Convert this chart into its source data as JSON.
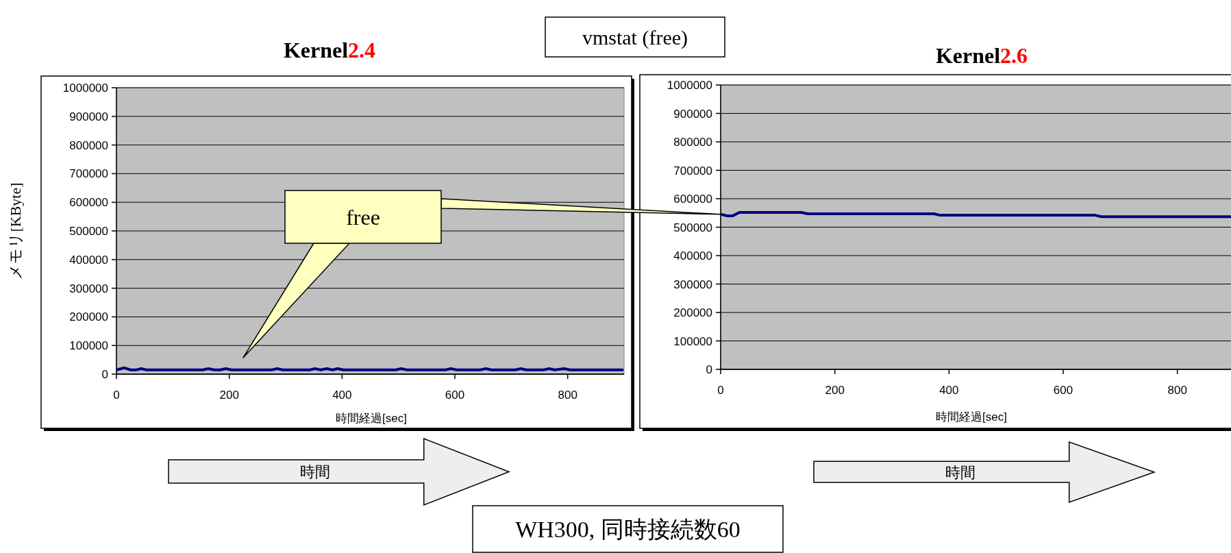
{
  "chart_data": [
    {
      "type": "line",
      "title": "Kernel2.4",
      "xlabel": "時間経過[sec]",
      "ylabel": "メモリ[KByte]",
      "x": [
        0,
        14,
        25,
        35,
        44,
        53,
        153,
        163,
        173,
        184,
        194,
        204,
        275,
        285,
        295,
        343,
        352,
        362,
        373,
        383,
        392,
        402,
        495,
        505,
        515,
        583,
        593,
        603,
        645,
        655,
        665,
        707,
        717,
        727,
        757,
        767,
        777,
        794,
        804,
        897
      ],
      "series": [
        {
          "color": "#000080",
          "values": [
            15000,
            22000,
            15000,
            15000,
            19000,
            15000,
            15000,
            19000,
            15000,
            15000,
            19000,
            15000,
            15000,
            19000,
            15000,
            15000,
            19000,
            15000,
            19000,
            15000,
            19000,
            15000,
            15000,
            19000,
            15000,
            15000,
            19000,
            15000,
            15000,
            19000,
            15000,
            15000,
            19000,
            15000,
            15000,
            19000,
            15000,
            19000,
            15000,
            15000
          ]
        }
      ],
      "xlim": [
        0,
        900
      ],
      "xticks": [
        0,
        200,
        400,
        600,
        800
      ],
      "ylim": [
        0,
        1000000
      ],
      "yticks": [
        0,
        100000,
        200000,
        300000,
        400000,
        500000,
        600000,
        700000,
        800000,
        900000,
        1000000
      ],
      "grid": "y",
      "marker": "none",
      "line_style": "solid",
      "annotations": [
        "free",
        "vmstat (free)",
        "時間"
      ]
    },
    {
      "type": "line",
      "title": "Kernel2.6",
      "xlabel": "時間経過[sec]",
      "x": [
        0,
        11,
        21,
        33,
        141,
        153,
        374,
        384,
        656,
        666,
        898
      ],
      "series": [
        {
          "color": "#000080",
          "values": [
            545000,
            540000,
            540000,
            552000,
            552000,
            547000,
            547000,
            542000,
            542000,
            537000,
            537000
          ]
        }
      ],
      "xlim": [
        0,
        900
      ],
      "xticks": [
        0,
        200,
        400,
        600,
        800
      ],
      "ylim": [
        0,
        1000000
      ],
      "yticks": [
        0,
        100000,
        200000,
        300000,
        400000,
        500000,
        600000,
        700000,
        800000,
        900000,
        1000000
      ],
      "grid": "y",
      "marker": "none",
      "line_style": "solid",
      "annotations": [
        "時間",
        "WH300, 同時接続数60"
      ]
    }
  ]
}
